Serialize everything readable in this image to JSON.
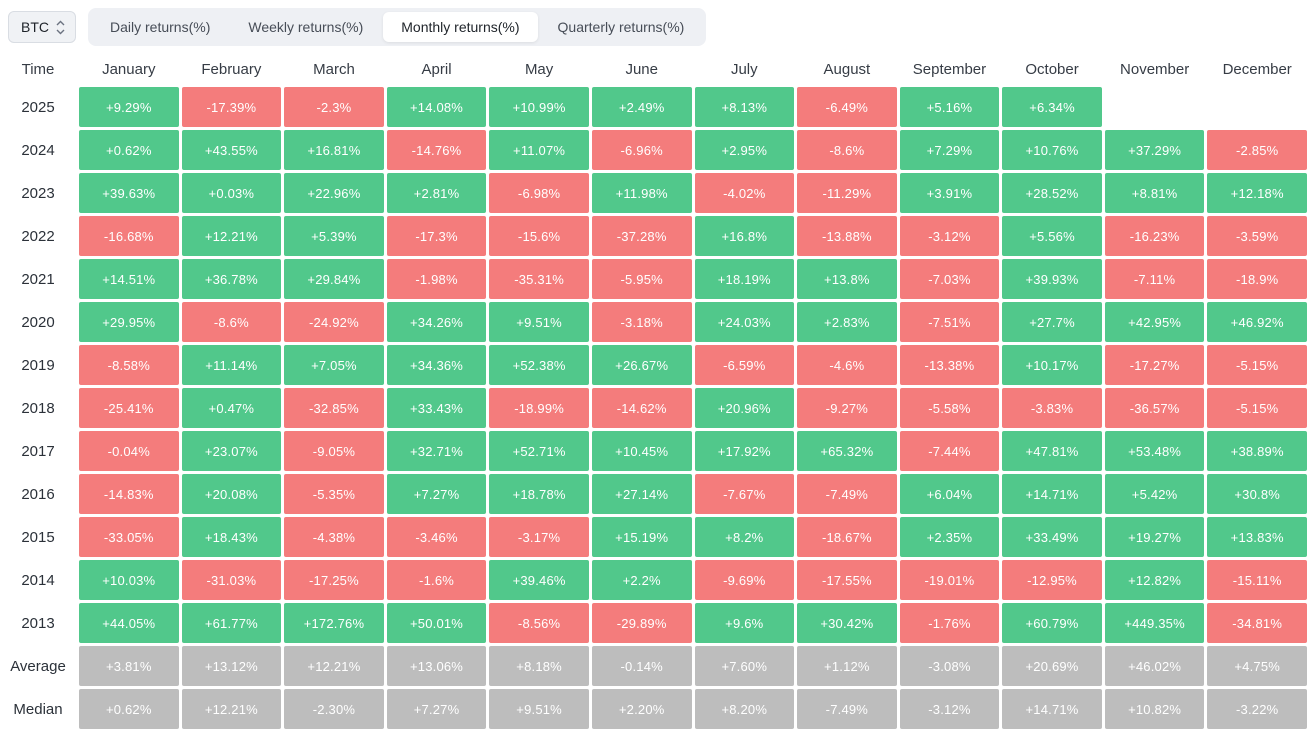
{
  "controls": {
    "symbol_select": {
      "value": "BTC",
      "icon": "up-down-chevrons-icon"
    },
    "tabs": [
      {
        "label": "Daily returns(%)",
        "active": false
      },
      {
        "label": "Weekly returns(%)",
        "active": false
      },
      {
        "label": "Monthly returns(%)",
        "active": true
      },
      {
        "label": "Quarterly returns(%)",
        "active": false
      }
    ]
  },
  "chart_data": {
    "type": "table",
    "title": "Monthly returns(%)",
    "columns": [
      "Time",
      "January",
      "February",
      "March",
      "April",
      "May",
      "June",
      "July",
      "August",
      "September",
      "October",
      "November",
      "December"
    ],
    "rows": [
      {
        "label": "2025",
        "type": "year",
        "values": [
          "+9.29%",
          "-17.39%",
          "-2.3%",
          "+14.08%",
          "+10.99%",
          "+2.49%",
          "+8.13%",
          "-6.49%",
          "+5.16%",
          "+6.34%",
          null,
          null
        ]
      },
      {
        "label": "2024",
        "type": "year",
        "values": [
          "+0.62%",
          "+43.55%",
          "+16.81%",
          "-14.76%",
          "+11.07%",
          "-6.96%",
          "+2.95%",
          "-8.6%",
          "+7.29%",
          "+10.76%",
          "+37.29%",
          "-2.85%"
        ]
      },
      {
        "label": "2023",
        "type": "year",
        "values": [
          "+39.63%",
          "+0.03%",
          "+22.96%",
          "+2.81%",
          "-6.98%",
          "+11.98%",
          "-4.02%",
          "-11.29%",
          "+3.91%",
          "+28.52%",
          "+8.81%",
          "+12.18%"
        ]
      },
      {
        "label": "2022",
        "type": "year",
        "values": [
          "-16.68%",
          "+12.21%",
          "+5.39%",
          "-17.3%",
          "-15.6%",
          "-37.28%",
          "+16.8%",
          "-13.88%",
          "-3.12%",
          "+5.56%",
          "-16.23%",
          "-3.59%"
        ]
      },
      {
        "label": "2021",
        "type": "year",
        "values": [
          "+14.51%",
          "+36.78%",
          "+29.84%",
          "-1.98%",
          "-35.31%",
          "-5.95%",
          "+18.19%",
          "+13.8%",
          "-7.03%",
          "+39.93%",
          "-7.11%",
          "-18.9%"
        ]
      },
      {
        "label": "2020",
        "type": "year",
        "values": [
          "+29.95%",
          "-8.6%",
          "-24.92%",
          "+34.26%",
          "+9.51%",
          "-3.18%",
          "+24.03%",
          "+2.83%",
          "-7.51%",
          "+27.7%",
          "+42.95%",
          "+46.92%"
        ]
      },
      {
        "label": "2019",
        "type": "year",
        "values": [
          "-8.58%",
          "+11.14%",
          "+7.05%",
          "+34.36%",
          "+52.38%",
          "+26.67%",
          "-6.59%",
          "-4.6%",
          "-13.38%",
          "+10.17%",
          "-17.27%",
          "-5.15%"
        ]
      },
      {
        "label": "2018",
        "type": "year",
        "values": [
          "-25.41%",
          "+0.47%",
          "-32.85%",
          "+33.43%",
          "-18.99%",
          "-14.62%",
          "+20.96%",
          "-9.27%",
          "-5.58%",
          "-3.83%",
          "-36.57%",
          "-5.15%"
        ]
      },
      {
        "label": "2017",
        "type": "year",
        "values": [
          "-0.04%",
          "+23.07%",
          "-9.05%",
          "+32.71%",
          "+52.71%",
          "+10.45%",
          "+17.92%",
          "+65.32%",
          "-7.44%",
          "+47.81%",
          "+53.48%",
          "+38.89%"
        ]
      },
      {
        "label": "2016",
        "type": "year",
        "values": [
          "-14.83%",
          "+20.08%",
          "-5.35%",
          "+7.27%",
          "+18.78%",
          "+27.14%",
          "-7.67%",
          "-7.49%",
          "+6.04%",
          "+14.71%",
          "+5.42%",
          "+30.8%"
        ]
      },
      {
        "label": "2015",
        "type": "year",
        "values": [
          "-33.05%",
          "+18.43%",
          "-4.38%",
          "-3.46%",
          "-3.17%",
          "+15.19%",
          "+8.2%",
          "-18.67%",
          "+2.35%",
          "+33.49%",
          "+19.27%",
          "+13.83%"
        ]
      },
      {
        "label": "2014",
        "type": "year",
        "values": [
          "+10.03%",
          "-31.03%",
          "-17.25%",
          "-1.6%",
          "+39.46%",
          "+2.2%",
          "-9.69%",
          "-17.55%",
          "-19.01%",
          "-12.95%",
          "+12.82%",
          "-15.11%"
        ]
      },
      {
        "label": "2013",
        "type": "year",
        "values": [
          "+44.05%",
          "+61.77%",
          "+172.76%",
          "+50.01%",
          "-8.56%",
          "-29.89%",
          "+9.6%",
          "+30.42%",
          "-1.76%",
          "+60.79%",
          "+449.35%",
          "-34.81%"
        ]
      },
      {
        "label": "Average",
        "type": "summary",
        "values": [
          "+3.81%",
          "+13.12%",
          "+12.21%",
          "+13.06%",
          "+8.18%",
          "-0.14%",
          "+7.60%",
          "+1.12%",
          "-3.08%",
          "+20.69%",
          "+46.02%",
          "+4.75%"
        ]
      },
      {
        "label": "Median",
        "type": "summary",
        "values": [
          "+0.62%",
          "+12.21%",
          "-2.30%",
          "+7.27%",
          "+9.51%",
          "+2.20%",
          "+8.20%",
          "-7.49%",
          "-3.12%",
          "+14.71%",
          "+10.82%",
          "-3.22%"
        ]
      }
    ],
    "colors": {
      "positive": "#51c88b",
      "negative": "#f47c7c",
      "summary": "#bdbdbd"
    }
  }
}
